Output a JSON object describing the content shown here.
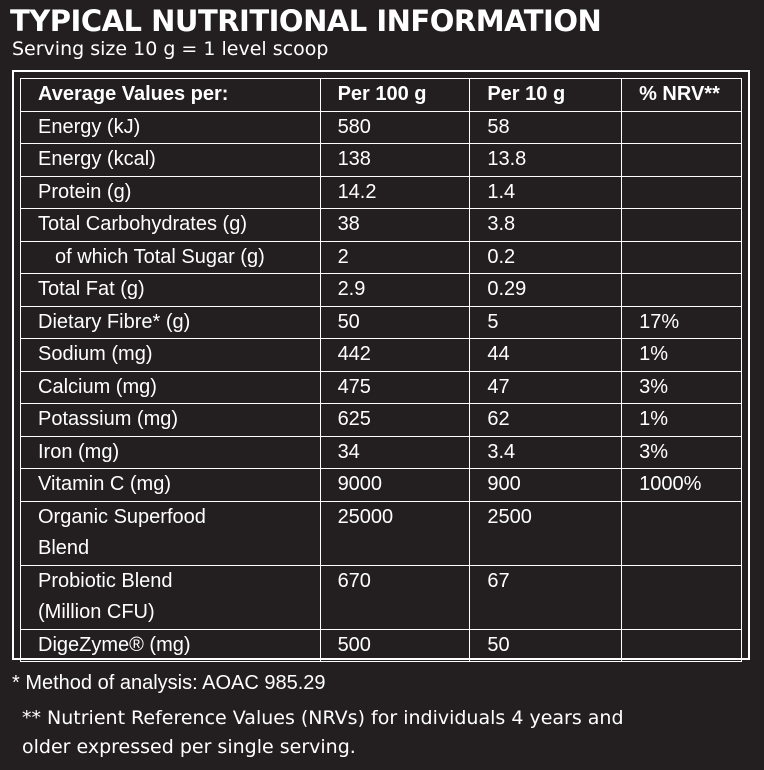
{
  "header": {
    "title": "TYPICAL NUTRITIONAL INFORMATION",
    "subtitle": "Serving size 10 g = 1 level scoop"
  },
  "table": {
    "columns": [
      "Average Values per:",
      "Per 100 g",
      "Per 10 g",
      "% NRV**"
    ],
    "rows": [
      [
        "Energy (kJ)",
        "580",
        "58",
        null
      ],
      [
        "Energy (kcal)",
        "138",
        "13.8",
        null
      ],
      [
        "Protein (g)",
        "14.2",
        "1.4",
        null
      ],
      [
        "Total Carbohydrates (g)",
        "38",
        "3.8",
        null
      ],
      [
        "of which Total Sugar (g)",
        "2",
        "0.2",
        null
      ],
      [
        "Total Fat (g)",
        "2.9",
        "0.29",
        null
      ],
      [
        "Dietary Fibre* (g)",
        "50",
        "5",
        "17%"
      ],
      [
        "Sodium (mg)",
        "442",
        "44",
        "1%"
      ],
      [
        "Calcium (mg)",
        "475",
        "47",
        "3%"
      ],
      [
        "Potassium (mg)",
        "625",
        "62",
        "1%"
      ],
      [
        "Iron (mg)",
        "34",
        "3.4",
        "3%"
      ],
      [
        "Vitamin C (mg)",
        "9000",
        "900",
        "1000%"
      ],
      [
        "Organic Superfood\nBlend",
        "25000",
        "2500",
        null
      ],
      [
        "Probiotic Blend\n(Million CFU)",
        "670",
        "67",
        null
      ],
      [
        "DigeZyme® (mg)",
        "500",
        "50",
        null
      ]
    ]
  },
  "footnotes": [
    "* Method of analysis: AOAC 985.29",
    "** Nutrient Reference Values (NRVs) for individuals 4 years and\nolder expressed per single serving."
  ]
}
